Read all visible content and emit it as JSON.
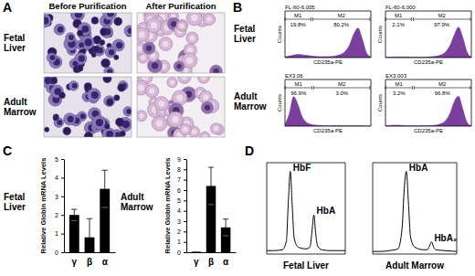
{
  "figure": {
    "panel_labels": [
      "A",
      "B",
      "C",
      "D"
    ],
    "panel_a": {
      "columns": [
        "Before Purification",
        "After Purification"
      ],
      "rows": [
        "Fetal Liver",
        "Adult Marrow"
      ]
    },
    "panel_b": {
      "rows": [
        "Fetal Liver",
        "Adult Marrow"
      ]
    }
  },
  "chart_data": [
    {
      "type": "area",
      "title": "FL-60-6.005",
      "x_label": "CD235a-PE",
      "y_label": "Counts",
      "x": [
        0,
        0.2,
        0.4,
        0.6,
        0.8,
        1.0,
        1.2,
        1.4,
        1.6,
        1.8,
        2.0,
        2.2,
        2.4,
        2.6,
        2.8,
        3.0,
        3.2,
        3.4,
        3.6,
        3.8,
        4.0
      ],
      "values": [
        2,
        5,
        8,
        10,
        9,
        7,
        5,
        4,
        3,
        3,
        3,
        4,
        6,
        10,
        20,
        40,
        75,
        95,
        60,
        15,
        2
      ],
      "color": "#7b3f9e",
      "xlim": [
        0,
        4
      ],
      "ylim": [
        0,
        150
      ],
      "tick_labels": false,
      "gates": [
        {
          "label": "M1",
          "from": 0,
          "to": 1.25,
          "text": "19.8%"
        },
        {
          "label": "M2",
          "from": 1.25,
          "to": 4,
          "text": "80.2%"
        }
      ]
    },
    {
      "type": "area",
      "title": "FL-60-6.000",
      "x_label": "CD235a-PE",
      "y_label": "Counts",
      "x": [
        0,
        0.2,
        0.4,
        0.6,
        0.8,
        1.0,
        1.2,
        1.4,
        1.6,
        1.8,
        2.0,
        2.2,
        2.4,
        2.6,
        2.8,
        3.0,
        3.2,
        3.4,
        3.6,
        3.8,
        4.0
      ],
      "values": [
        1,
        1,
        2,
        2,
        2,
        2,
        1,
        1,
        1,
        1,
        2,
        3,
        5,
        9,
        18,
        38,
        72,
        98,
        65,
        18,
        2
      ],
      "color": "#7b3f9e",
      "xlim": [
        0,
        4
      ],
      "ylim": [
        0,
        150
      ],
      "tick_labels": false,
      "gates": [
        {
          "label": "M1",
          "from": 0,
          "to": 1.25,
          "text": "2.1%"
        },
        {
          "label": "M2",
          "from": 1.25,
          "to": 4,
          "text": "97.9%"
        }
      ]
    },
    {
      "type": "area",
      "title": "EX3.06",
      "x_label": "CD235a-PE",
      "y_label": "Counts",
      "x": [
        0,
        0.2,
        0.4,
        0.6,
        0.8,
        1.0,
        1.2,
        1.4,
        1.6,
        1.8,
        2.0,
        2.2,
        2.4,
        2.6,
        2.8,
        3.0,
        3.2,
        3.4,
        3.6,
        3.8,
        4.0
      ],
      "values": [
        5,
        40,
        95,
        70,
        30,
        12,
        6,
        3,
        2,
        1,
        1,
        1,
        1,
        1,
        1,
        1,
        1,
        1,
        1,
        0,
        0
      ],
      "color": "#7b3f9e",
      "xlim": [
        0,
        4
      ],
      "ylim": [
        0,
        150
      ],
      "tick_labels": false,
      "gates": [
        {
          "label": "M1",
          "from": 0,
          "to": 1.3,
          "text": "96.9%"
        },
        {
          "label": "M2",
          "from": 1.3,
          "to": 4,
          "text": "3.0%"
        }
      ]
    },
    {
      "type": "area",
      "title": "EX3.003",
      "x_label": "CD235a-PE",
      "y_label": "Counts",
      "x": [
        0,
        0.2,
        0.4,
        0.6,
        0.8,
        1.0,
        1.2,
        1.4,
        1.6,
        1.8,
        2.0,
        2.2,
        2.4,
        2.6,
        2.8,
        3.0,
        3.2,
        3.4,
        3.6,
        3.8,
        4.0
      ],
      "values": [
        1,
        2,
        3,
        3,
        2,
        1,
        1,
        1,
        1,
        1,
        1,
        2,
        4,
        8,
        18,
        40,
        78,
        96,
        55,
        12,
        1
      ],
      "color": "#7b3f9e",
      "xlim": [
        0,
        4
      ],
      "ylim": [
        0,
        150
      ],
      "tick_labels": false,
      "gates": [
        {
          "label": "M1",
          "from": 0,
          "to": 1.3,
          "text": "3.2%"
        },
        {
          "label": "M2",
          "from": 1.3,
          "to": 4,
          "text": "96.8%"
        }
      ]
    },
    {
      "type": "bar",
      "title": "Fetal Liver",
      "y_label": "Relative Globin mRNA Levels",
      "categories": [
        "γ",
        "β",
        "α"
      ],
      "values": [
        2.0,
        0.8,
        3.4
      ],
      "errors": [
        0.3,
        1.0,
        1.0
      ],
      "color": "#000000",
      "ylim": [
        0,
        5
      ],
      "yticks": [
        0,
        1,
        2,
        3,
        4,
        5
      ]
    },
    {
      "type": "bar",
      "title": "Adult Marrow",
      "y_label": "Relative Globin mRNA Levels",
      "categories": [
        "γ",
        "β",
        "α"
      ],
      "values": [
        0.05,
        6.4,
        2.4
      ],
      "errors": [
        0,
        1.8,
        0.8
      ],
      "color": "#000000",
      "ylim": [
        0,
        9
      ],
      "yticks": [
        0,
        1,
        2,
        3,
        4,
        5,
        6,
        7,
        8,
        9
      ]
    },
    {
      "type": "line",
      "title": "Fetal Liver",
      "x": [
        0,
        2,
        4,
        5,
        5.5,
        6,
        6.5,
        7,
        8,
        10,
        11,
        11.5,
        12,
        12.5,
        13,
        14,
        16,
        18,
        20
      ],
      "values": [
        4,
        4,
        5,
        15,
        60,
        95,
        55,
        18,
        8,
        6,
        8,
        25,
        45,
        22,
        9,
        5,
        4,
        4,
        4
      ],
      "color": "#000000",
      "xlim": [
        0,
        20
      ],
      "ylim": [
        0,
        105
      ],
      "tick_labels": false,
      "annotations": [
        {
          "text": "HbF",
          "x": 6,
          "y": 95
        },
        {
          "text": "HbA",
          "x": 12,
          "y": 45
        }
      ]
    },
    {
      "type": "line",
      "title": "Adult Marrow",
      "x": [
        0,
        2,
        4,
        6,
        7,
        7.5,
        8,
        8.5,
        9,
        10,
        12,
        13,
        13.5,
        14,
        14.5,
        15,
        17,
        20
      ],
      "values": [
        3,
        3,
        4,
        6,
        30,
        75,
        95,
        60,
        20,
        8,
        5,
        5,
        9,
        14,
        8,
        5,
        4,
        3
      ],
      "color": "#000000",
      "xlim": [
        0,
        20
      ],
      "ylim": [
        0,
        105
      ],
      "tick_labels": false,
      "annotations": [
        {
          "text": "HbA",
          "x": 8,
          "y": 95
        },
        {
          "text": "HbA₂",
          "x": 14,
          "y": 14
        }
      ]
    }
  ]
}
